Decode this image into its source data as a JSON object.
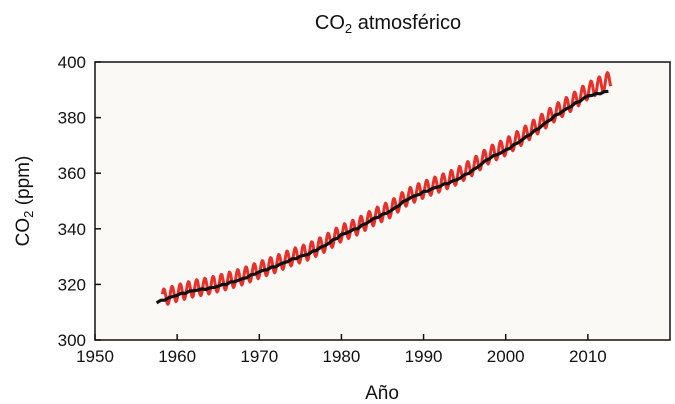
{
  "chart_data": {
    "type": "line",
    "title": "CO",
    "title_sub": "2",
    "title_suffix": " atmosférico",
    "xlabel": "Año",
    "ylabel_prefix": "CO",
    "ylabel_sub": "2",
    "ylabel_suffix": " (ppm)",
    "xlim": [
      1950,
      2020
    ],
    "ylim": [
      300,
      400
    ],
    "xticks": [
      1950,
      1960,
      1970,
      1980,
      1990,
      2000,
      2010
    ],
    "yticks": [
      300,
      320,
      340,
      360,
      380,
      400
    ],
    "grid": false,
    "legend": "none",
    "plot_background": "#fbf9f6",
    "series": [
      {
        "kind": "monthly_seasonal",
        "color": "#e8302a",
        "x": [
          1958.2,
          1960,
          1962,
          1964,
          1966,
          1968,
          1970,
          1972,
          1974,
          1976,
          1978,
          1980,
          1982,
          1984,
          1986,
          1988,
          1990,
          1992,
          1994,
          1996,
          1998,
          2000,
          2002,
          2004,
          2006,
          2008,
          2010,
          2012.8
        ],
        "y": [
          315.2,
          316.9,
          318.5,
          319.6,
          321.1,
          322.9,
          325.2,
          327.3,
          329.8,
          331.8,
          334.7,
          338.4,
          340.9,
          344.3,
          347.1,
          351.4,
          354.1,
          356.3,
          358.8,
          362.3,
          366.6,
          369.4,
          373.2,
          377.4,
          381.7,
          385.4,
          389.6,
          393.8
        ],
        "seasonal_amplitude": 3.0
      },
      {
        "kind": "seasonally_adjusted",
        "color": "#111111",
        "x": [
          1957.5,
          1960,
          1962,
          1964,
          1966,
          1968,
          1970,
          1972,
          1974,
          1976,
          1978,
          1980,
          1982,
          1984,
          1986,
          1988,
          1990,
          1992,
          1994,
          1996,
          1998,
          2000,
          2002,
          2004,
          2006,
          2008,
          2010,
          2012.5
        ],
        "y": [
          313.5,
          316.2,
          317.8,
          318.6,
          320.2,
          322.0,
          324.5,
          326.5,
          329.0,
          331.0,
          334.0,
          337.8,
          340.3,
          343.7,
          346.4,
          350.6,
          353.2,
          355.4,
          357.6,
          361.0,
          365.4,
          368.2,
          372.0,
          376.2,
          380.6,
          384.2,
          387.8,
          389.5
        ]
      }
    ]
  }
}
